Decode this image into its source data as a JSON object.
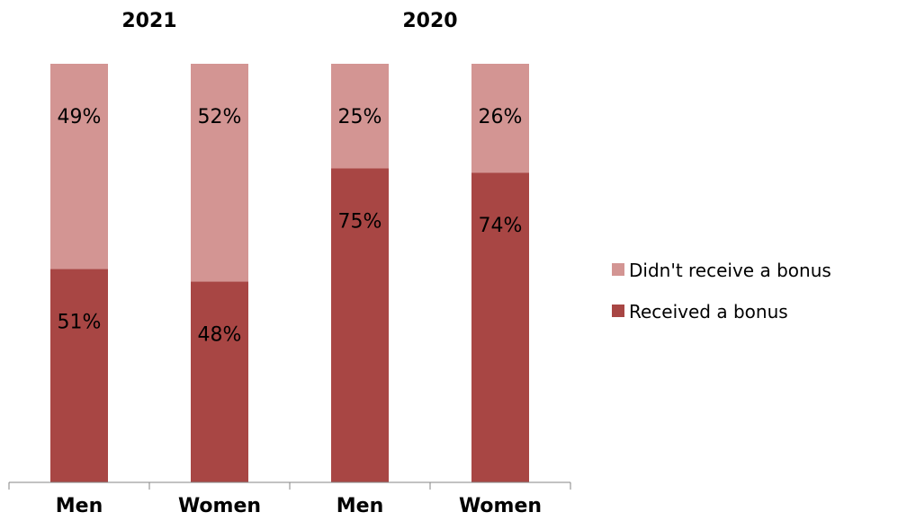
{
  "chart_data": {
    "type": "bar",
    "stacked": true,
    "groups": [
      "2021",
      "2020"
    ],
    "categories": [
      "Men",
      "Women",
      "Men",
      "Women"
    ],
    "category_group": [
      "2021",
      "2021",
      "2020",
      "2020"
    ],
    "series": [
      {
        "name": "Received a bonus",
        "values": [
          51,
          48,
          75,
          74
        ],
        "labels": [
          "51%",
          "48%",
          "75%",
          "74%"
        ],
        "color": "#A84644"
      },
      {
        "name": "Didn't receive a bonus",
        "values": [
          49,
          52,
          25,
          26
        ],
        "labels": [
          "49%",
          "52%",
          "25%",
          "26%"
        ],
        "color": "#D39593"
      }
    ],
    "legend_order": [
      "Didn't receive a bonus",
      "Received a bonus"
    ],
    "ylim": [
      0,
      100
    ],
    "legend_position": "right",
    "grid": false
  }
}
